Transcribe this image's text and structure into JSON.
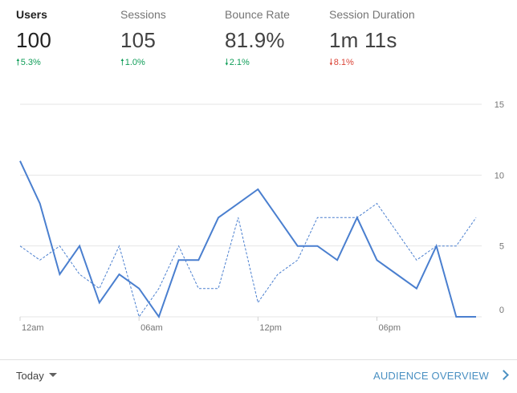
{
  "metrics": [
    {
      "label": "Users",
      "value": "100",
      "change": "5.3%",
      "direction": "up",
      "color": "#0f9d58",
      "active": true
    },
    {
      "label": "Sessions",
      "value": "105",
      "change": "1.0%",
      "direction": "up",
      "color": "#0f9d58",
      "active": false
    },
    {
      "label": "Bounce Rate",
      "value": "81.9%",
      "change": "2.1%",
      "direction": "down",
      "color": "#0f9d58",
      "active": false
    },
    {
      "label": "Session Duration",
      "value": "1m 11s",
      "change": "8.1%",
      "direction": "down",
      "color": "#db4437",
      "active": false
    }
  ],
  "chart_data": {
    "type": "line",
    "x": [
      "12am",
      "1am",
      "2am",
      "3am",
      "4am",
      "5am",
      "6am",
      "7am",
      "8am",
      "9am",
      "10am",
      "11am",
      "12pm",
      "1pm",
      "2pm",
      "3pm",
      "4pm",
      "5pm",
      "6pm",
      "7pm",
      "8pm",
      "9pm",
      "10pm",
      "11pm"
    ],
    "x_tick_labels": [
      "12am",
      "06am",
      "12pm",
      "06pm"
    ],
    "y_tick_labels": [
      "15",
      "10",
      "5",
      "0"
    ],
    "ylim": [
      0,
      15
    ],
    "grid": true,
    "series": [
      {
        "values": [
          11,
          8,
          3,
          5,
          1,
          3,
          2,
          0,
          4,
          4,
          7,
          8,
          9,
          7,
          5,
          5,
          4,
          7,
          4,
          3,
          2,
          5,
          0,
          0
        ],
        "color": "#4a7fcf",
        "style": "solid"
      },
      {
        "values": [
          5,
          4,
          5,
          3,
          2,
          5,
          0,
          2,
          5,
          2,
          2,
          7,
          1,
          3,
          4,
          7,
          7,
          7,
          8,
          6,
          4,
          5,
          5,
          7
        ],
        "color": "#4a7fcf",
        "style": "dashed"
      }
    ]
  },
  "footer": {
    "date_range": "Today",
    "report_link": "AUDIENCE OVERVIEW"
  }
}
